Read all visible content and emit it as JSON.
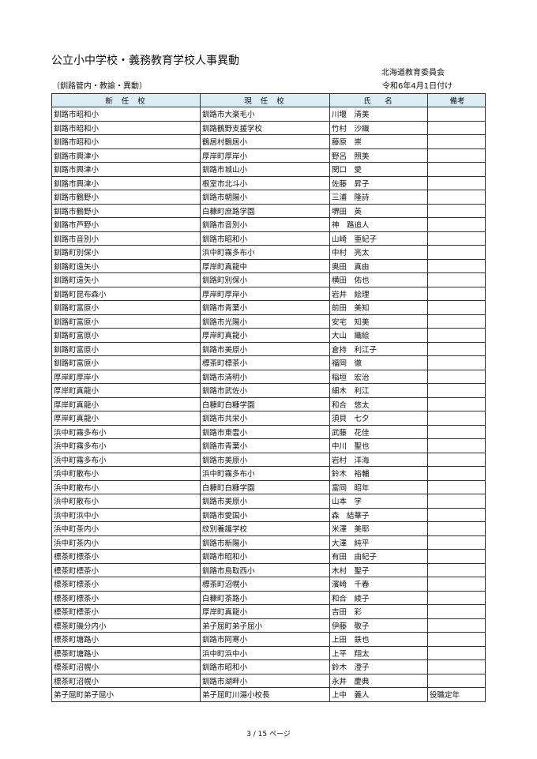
{
  "title": "公立小中学校・義務教育学校人事異動",
  "organization": "北海道教育委員会",
  "subtitle": "（釧路管内・教諭・異動）",
  "effective_date": "令和6年4月1日付け",
  "table": {
    "headers": [
      "新 任 校",
      "現 任 校",
      "氏　名",
      "備考"
    ],
    "rows": [
      [
        "釧路市昭和小",
        "釧路市大楽毛小",
        "川堰　清美",
        ""
      ],
      [
        "釧路市昭和小",
        "釧路鶴野支援学校",
        "竹村　沙織",
        ""
      ],
      [
        "釧路市昭和小",
        "鶴居村鶴居小",
        "藤原　崇",
        ""
      ],
      [
        "釧路市興津小",
        "厚岸町厚岸小",
        "野呂　照美",
        ""
      ],
      [
        "釧路市興津小",
        "釧路市城山小",
        "関口　愛",
        ""
      ],
      [
        "釧路市興津小",
        "根室市北斗小",
        "佐藤　昇子",
        ""
      ],
      [
        "釧路市鶴野小",
        "釧路市朝陽小",
        "三浦　隆詩",
        ""
      ],
      [
        "釧路市鶴野小",
        "白糠町庶路学園",
        "堺田　英",
        ""
      ],
      [
        "釧路市芦野小",
        "釧路市音別小",
        "神　路追人",
        ""
      ],
      [
        "釧路市音別小",
        "釧路市昭和小",
        "山崎　亜紀子",
        ""
      ],
      [
        "釧路町別保小",
        "浜中町霧多布小",
        "中村　亮太",
        ""
      ],
      [
        "釧路町遠矢小",
        "厚岸町真龍中",
        "奥田　真由",
        ""
      ],
      [
        "釧路町遠矢小",
        "釧路町別保小",
        "横田　佑也",
        ""
      ],
      [
        "釧路町昆布森小",
        "厚岸町厚岸小",
        "岩井　絵理",
        ""
      ],
      [
        "釧路町富原小",
        "釧路市青葉小",
        "前田　美知",
        ""
      ],
      [
        "釧路町富原小",
        "釧路市光陽小",
        "安宅　知美",
        ""
      ],
      [
        "釧路町富原小",
        "厚岸町真龍小",
        "大山　織絵",
        ""
      ],
      [
        "釧路町富原小",
        "釧路市美原小",
        "倉持　利江子",
        ""
      ],
      [
        "釧路町富原小",
        "標茶町標茶小",
        "福岡　徹",
        ""
      ],
      [
        "厚岸町厚岸小",
        "釧路市清明小",
        "稲垣　宏治",
        ""
      ],
      [
        "厚岸町真龍小",
        "釧路市武佐小",
        "細木　利江",
        ""
      ],
      [
        "厚岸町真龍小",
        "白糠町白糠学園",
        "和合　悠太",
        ""
      ],
      [
        "厚岸町真龍小",
        "釧路市共栄小",
        "須貝　七夕",
        ""
      ],
      [
        "浜中町霧多布小",
        "釧路市東雲小",
        "武藤　花佳",
        ""
      ],
      [
        "浜中町霧多布小",
        "釧路市青葉小",
        "中川　聖也",
        ""
      ],
      [
        "浜中町霧多布小",
        "釧路市美原小",
        "岩村　洋海",
        ""
      ],
      [
        "浜中町散布小",
        "浜中町霧多布小",
        "鈴木　裕輔",
        ""
      ],
      [
        "浜中町散布小",
        "白糠町白糠学園",
        "富岡　昭年",
        ""
      ],
      [
        "浜中町散布小",
        "釧路市美原小",
        "山本　学",
        ""
      ],
      [
        "浜中町浜中小",
        "釧路市愛国小",
        "森　結華子",
        ""
      ],
      [
        "浜中町茶内小",
        "紋別養護学校",
        "米澤　美耶",
        ""
      ],
      [
        "浜中町茶内小",
        "釧路市新陽小",
        "大澤　純平",
        ""
      ],
      [
        "標茶町標茶小",
        "釧路市昭和小",
        "有田　由紀子",
        ""
      ],
      [
        "標茶町標茶小",
        "釧路市鳥取西小",
        "木村　聖子",
        ""
      ],
      [
        "標茶町標茶小",
        "標茶町沼幌小",
        "濱崎　千春",
        ""
      ],
      [
        "標茶町標茶小",
        "白糠町茶路小",
        "和合　綾子",
        ""
      ],
      [
        "標茶町標茶小",
        "厚岸町真龍小",
        "吉田　彩",
        ""
      ],
      [
        "標茶町磯分内小",
        "弟子屈町弟子屈小",
        "伊藤　敬子",
        ""
      ],
      [
        "標茶町塘路小",
        "釧路市阿寒小",
        "上田　鉄也",
        ""
      ],
      [
        "標茶町塘路小",
        "浜中町浜中小",
        "上平　翔太",
        ""
      ],
      [
        "標茶町沼幌小",
        "釧路市昭和小",
        "鈴木　澄子",
        ""
      ],
      [
        "標茶町沼幌小",
        "釧路市湖畔小",
        "永井　慶典",
        ""
      ],
      [
        "弟子屈町弟子屈小",
        "弟子屈町川湯小校長",
        "上中　義人",
        "役職定年"
      ]
    ]
  },
  "footer": "3 / 15 ページ",
  "colors": {
    "header_bg": "#dcecf4"
  }
}
